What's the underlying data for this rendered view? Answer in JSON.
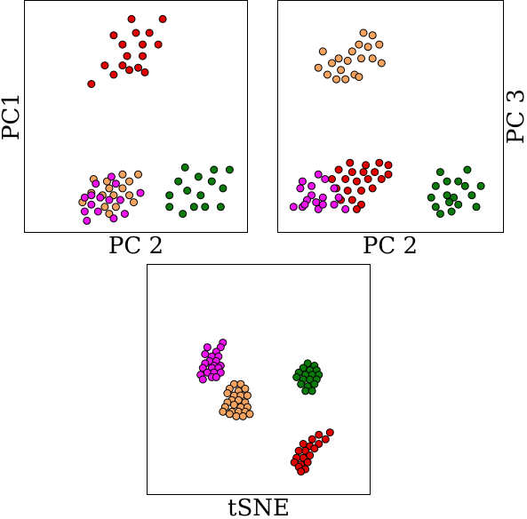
{
  "colors": {
    "red": "#e00000",
    "orange": "#f4a460",
    "magenta": "#ee11ee",
    "green": "#0a7a0a"
  },
  "chart_data": [
    {
      "type": "scatter",
      "xlabel": "PC 2",
      "ylabel": "PC1",
      "grid": false,
      "xlim": [
        0,
        100
      ],
      "ylim": [
        0,
        100
      ],
      "series": [
        {
          "color_key": "red",
          "points": [
            [
              48,
              92
            ],
            [
              62,
              92
            ],
            [
              40,
              85
            ],
            [
              50,
              86
            ],
            [
              56,
              86
            ],
            [
              44,
              81
            ],
            [
              53,
              81
            ],
            [
              60,
              81
            ],
            [
              46,
              76
            ],
            [
              53,
              76
            ],
            [
              36,
              72
            ],
            [
              44,
              72
            ],
            [
              51,
              71
            ],
            [
              40,
              68
            ],
            [
              47,
              70
            ],
            [
              54,
              69
            ],
            [
              30,
              64
            ]
          ]
        },
        {
          "color_key": "green",
          "points": [
            [
              72,
              28
            ],
            [
              85,
              27
            ],
            [
              92,
              27
            ],
            [
              69,
              22
            ],
            [
              78,
              24
            ],
            [
              84,
              22
            ],
            [
              89,
              19
            ],
            [
              65,
              16
            ],
            [
              73,
              18
            ],
            [
              79,
              16
            ],
            [
              65,
              11
            ],
            [
              76,
              11
            ],
            [
              81,
              11
            ],
            [
              88,
              11
            ],
            [
              71,
              8
            ]
          ]
        },
        {
          "color_key": "orange",
          "points": [
            [
              44,
              25
            ],
            [
              51,
              25
            ],
            [
              31,
              23
            ],
            [
              37,
              22
            ],
            [
              47,
              22
            ],
            [
              38,
              19
            ],
            [
              44,
              19
            ],
            [
              30,
              17
            ],
            [
              35,
              16
            ],
            [
              40,
              16
            ],
            [
              47,
              16
            ],
            [
              49,
              13
            ],
            [
              36,
              11
            ],
            [
              41,
              11
            ],
            [
              38,
              8
            ],
            [
              26,
              13
            ]
          ]
        },
        {
          "color_key": "magenta",
          "points": [
            [
              32,
              21
            ],
            [
              39,
              24
            ],
            [
              30,
              16
            ],
            [
              34,
              15
            ],
            [
              41,
              21
            ],
            [
              52,
              17
            ],
            [
              27,
              15
            ],
            [
              30,
              12
            ],
            [
              38,
              14
            ],
            [
              43,
              14
            ],
            [
              27,
              9
            ],
            [
              33,
              9
            ],
            [
              45,
              8
            ],
            [
              40,
              6
            ],
            [
              28,
              5
            ]
          ]
        }
      ]
    },
    {
      "type": "scatter",
      "xlabel": "PC 2",
      "ylabel": "PC 3",
      "grid": false,
      "xlim": [
        0,
        100
      ],
      "ylim": [
        0,
        100
      ],
      "series": [
        {
          "color_key": "orange",
          "points": [
            [
              38,
              86
            ],
            [
              42,
              85
            ],
            [
              36,
              81
            ],
            [
              40,
              80
            ],
            [
              45,
              81
            ],
            [
              33,
              78
            ],
            [
              37,
              75
            ],
            [
              42,
              75
            ],
            [
              46,
              73
            ],
            [
              20,
              78
            ],
            [
              24,
              73
            ],
            [
              27,
              75
            ],
            [
              31,
              74
            ],
            [
              22,
              68
            ],
            [
              28,
              70
            ],
            [
              34,
              68
            ],
            [
              18,
              71
            ],
            [
              26,
              66
            ],
            [
              30,
              66
            ],
            [
              36,
              67
            ]
          ]
        },
        {
          "color_key": "red",
          "points": [
            [
              32,
              30
            ],
            [
              39,
              29
            ],
            [
              45,
              30
            ],
            [
              49,
              29
            ],
            [
              27,
              27
            ],
            [
              33,
              26
            ],
            [
              38,
              26
            ],
            [
              43,
              26
            ],
            [
              49,
              25
            ],
            [
              24,
              23
            ],
            [
              30,
              23
            ],
            [
              35,
              22
            ],
            [
              40,
              23
            ],
            [
              46,
              23
            ],
            [
              26,
              19
            ],
            [
              31,
              18
            ],
            [
              37,
              18
            ],
            [
              42,
              19
            ],
            [
              28,
              14
            ],
            [
              33,
              14
            ],
            [
              37,
              12
            ],
            [
              35,
              10
            ]
          ]
        },
        {
          "color_key": "magenta",
          "points": [
            [
              18,
              25
            ],
            [
              21,
              23
            ],
            [
              11,
              22
            ],
            [
              15,
              20
            ],
            [
              25,
              19
            ],
            [
              10,
              19
            ],
            [
              15,
              16
            ],
            [
              20,
              15
            ],
            [
              27,
              15
            ],
            [
              13,
              14
            ],
            [
              11,
              11
            ],
            [
              25,
              12
            ],
            [
              30,
              10
            ],
            [
              7,
              11
            ],
            [
              12,
              12
            ],
            [
              17,
              13
            ],
            [
              18,
              10
            ],
            [
              20,
              12
            ]
          ]
        },
        {
          "color_key": "green",
          "points": [
            [
              72,
              26
            ],
            [
              84,
              27
            ],
            [
              75,
              22
            ],
            [
              80,
              22
            ],
            [
              90,
              20
            ],
            [
              70,
              20
            ],
            [
              83,
              20
            ],
            [
              68,
              15
            ],
            [
              75,
              16
            ],
            [
              78,
              15
            ],
            [
              86,
              16
            ],
            [
              70,
              11
            ],
            [
              76,
              13
            ],
            [
              80,
              12
            ],
            [
              72,
              8
            ],
            [
              88,
              11
            ],
            [
              77,
              9
            ]
          ]
        }
      ]
    },
    {
      "type": "scatter",
      "xlabel": "tSNE",
      "ylabel": "",
      "grid": false,
      "xlim": [
        0,
        100
      ],
      "ylim": [
        0,
        100
      ],
      "series": [
        {
          "color_key": "magenta",
          "points": [
            [
              34,
              66
            ],
            [
              27,
              64
            ],
            [
              33,
              64
            ],
            [
              31,
              62
            ],
            [
              26,
              61
            ],
            [
              29,
              60
            ],
            [
              32,
              60
            ],
            [
              28,
              58
            ],
            [
              31,
              58
            ],
            [
              26,
              57
            ],
            [
              30,
              56
            ],
            [
              33,
              56
            ],
            [
              29,
              55
            ],
            [
              32,
              55
            ],
            [
              25,
              55
            ],
            [
              27,
              53
            ],
            [
              30,
              53
            ],
            [
              33,
              53
            ],
            [
              24,
              52
            ],
            [
              29,
              51
            ],
            [
              31,
              51
            ],
            [
              25,
              50
            ]
          ]
        },
        {
          "color_key": "green",
          "points": [
            [
              72,
              57
            ],
            [
              75,
              56
            ],
            [
              70,
              55
            ],
            [
              73,
              54
            ],
            [
              76,
              54
            ],
            [
              68,
              53
            ],
            [
              71,
              52
            ],
            [
              74,
              52
            ],
            [
              77,
              52
            ],
            [
              70,
              50
            ],
            [
              73,
              50
            ],
            [
              76,
              50
            ],
            [
              69,
              48
            ],
            [
              72,
              47
            ],
            [
              75,
              48
            ],
            [
              71,
              45
            ],
            [
              74,
              45
            ],
            [
              67,
              51
            ]
          ]
        },
        {
          "color_key": "orange",
          "points": [
            [
              39,
              48
            ],
            [
              42,
              48
            ],
            [
              37,
              46
            ],
            [
              41,
              45
            ],
            [
              44,
              46
            ],
            [
              36,
              44
            ],
            [
              39,
              43
            ],
            [
              42,
              43
            ],
            [
              45,
              43
            ],
            [
              38,
              41
            ],
            [
              41,
              41
            ],
            [
              44,
              40
            ],
            [
              36,
              40
            ],
            [
              39,
              39
            ],
            [
              42,
              38
            ],
            [
              45,
              38
            ],
            [
              35,
              38
            ],
            [
              38,
              36
            ],
            [
              41,
              36
            ],
            [
              44,
              36
            ],
            [
              37,
              35
            ],
            [
              40,
              34
            ],
            [
              43,
              34
            ],
            [
              46,
              35
            ],
            [
              34,
              36
            ]
          ]
        },
        {
          "color_key": "red",
          "points": [
            [
              82,
              27
            ],
            [
              77,
              26
            ],
            [
              80,
              24
            ],
            [
              74,
              24
            ],
            [
              77,
              22
            ],
            [
              73,
              21
            ],
            [
              70,
              22
            ],
            [
              75,
              20
            ],
            [
              71,
              19
            ],
            [
              68,
              19
            ],
            [
              73,
              17
            ],
            [
              70,
              16
            ],
            [
              67,
              16
            ],
            [
              72,
              14
            ],
            [
              69,
              13
            ],
            [
              66,
              14
            ],
            [
              71,
              11
            ],
            [
              68,
              12
            ],
            [
              69,
              10
            ]
          ]
        }
      ]
    }
  ]
}
